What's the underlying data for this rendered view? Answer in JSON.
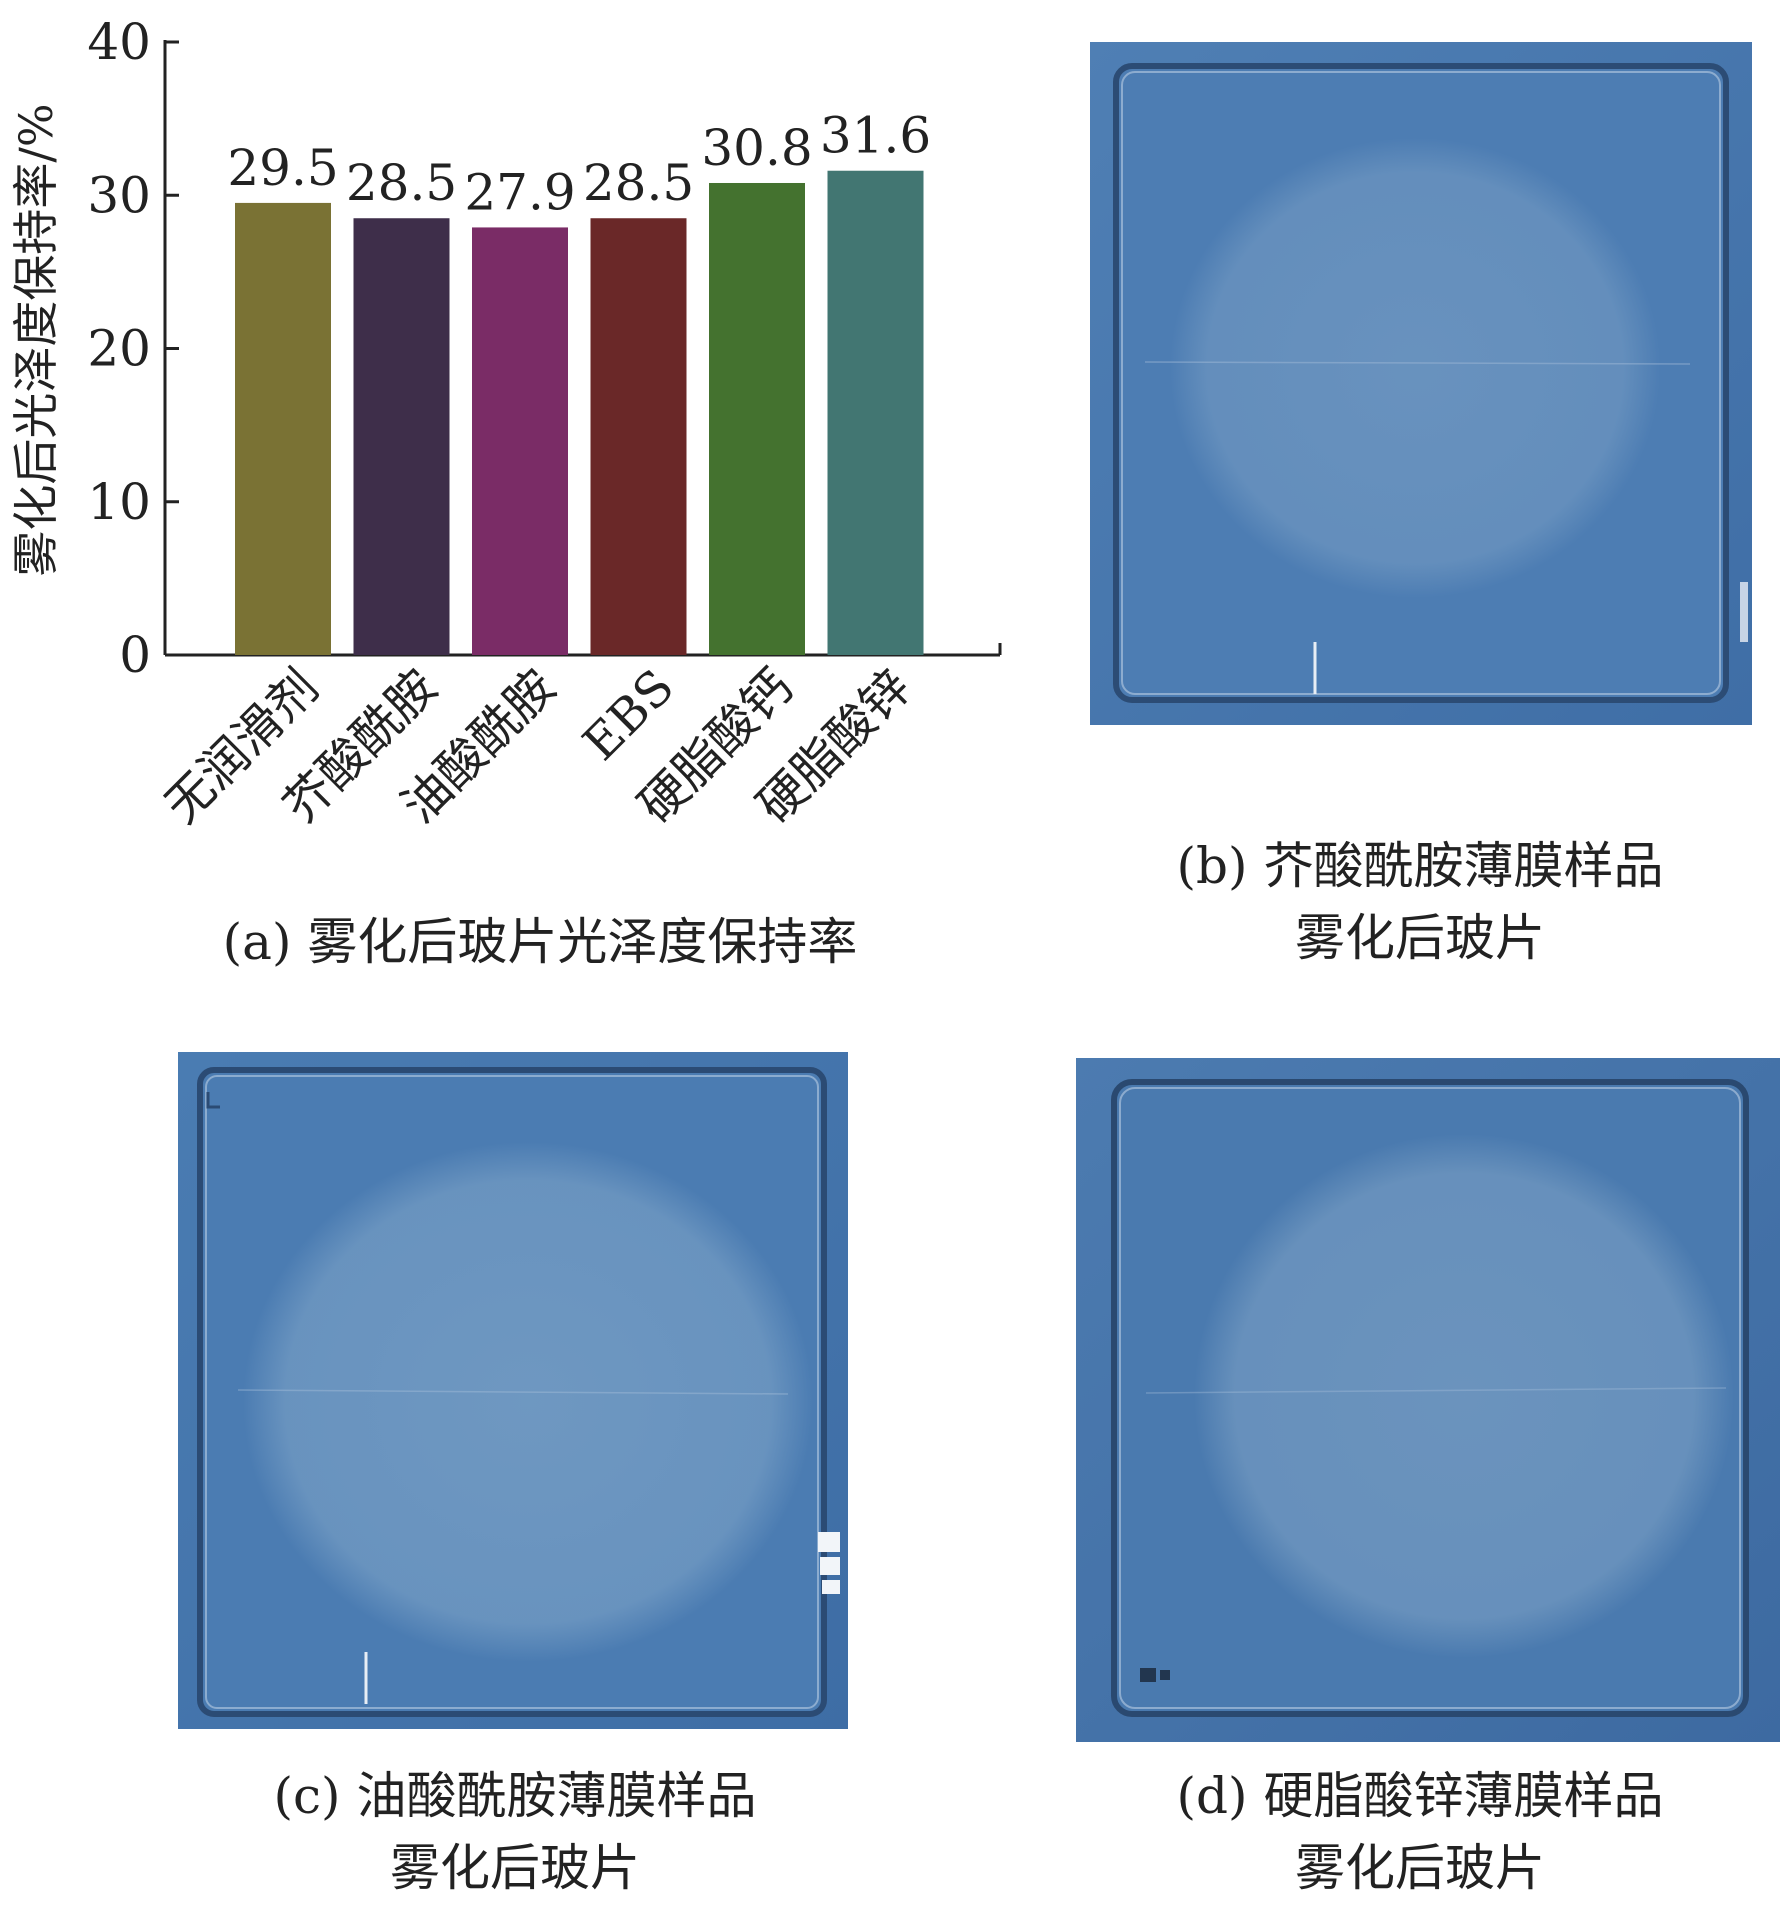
{
  "chart_data": {
    "type": "bar",
    "categories": [
      "无润滑剂",
      "芥酸酰胺",
      "油酸酰胺",
      "EBS",
      "硬脂酸钙",
      "硬脂酸锌"
    ],
    "values": [
      29.5,
      28.5,
      27.9,
      28.5,
      30.8,
      31.6
    ],
    "value_labels": [
      "29.5",
      "28.5",
      "27.9",
      "28.5",
      "30.8",
      "31.6"
    ],
    "ylabel": "雾化后光泽度保持率/%",
    "ylim": [
      0,
      40
    ],
    "yticks": [
      0,
      10,
      20,
      30,
      40
    ],
    "grid": false,
    "colors": [
      "#7a7234",
      "#3e2e4a",
      "#7a2c66",
      "#6a2828",
      "#44722f",
      "#427672"
    ]
  },
  "captions": {
    "a": "(a) 雾化后玻片光泽度保持率",
    "b_line1": "(b) 芥酸酰胺薄膜样品",
    "b_line2": "雾化后玻片",
    "c_line1": "(c) 油酸酰胺薄膜样品",
    "c_line2": "雾化后玻片",
    "d_line1": "(d) 硬脂酸锌薄膜样品",
    "d_line2": "雾化后玻片"
  }
}
